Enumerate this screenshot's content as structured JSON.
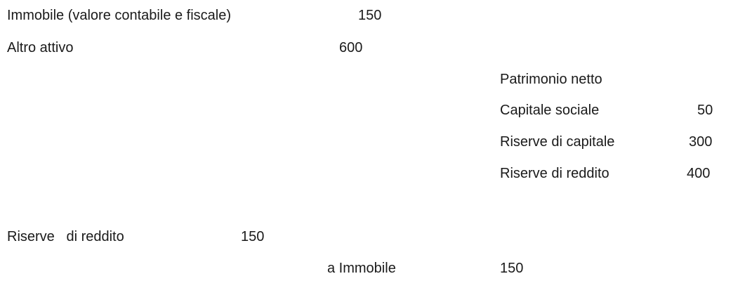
{
  "balance_sheet": {
    "assets": [
      {
        "label": "Immobile (valore contabile e fiscale)",
        "value": "150"
      },
      {
        "label": "Altro attivo",
        "value": "600"
      }
    ],
    "equity_heading": "Patrimonio netto",
    "equity": [
      {
        "label": "Capitale sociale",
        "value": "50"
      },
      {
        "label": "Riserve di capitale",
        "value": "300"
      },
      {
        "label": "Riserve di reddito",
        "value": "400"
      }
    ]
  },
  "journal_entry": {
    "debit": {
      "label": "Riserve   di reddito",
      "value": "150"
    },
    "credit": {
      "label": "a Immobile",
      "value": "150"
    }
  }
}
